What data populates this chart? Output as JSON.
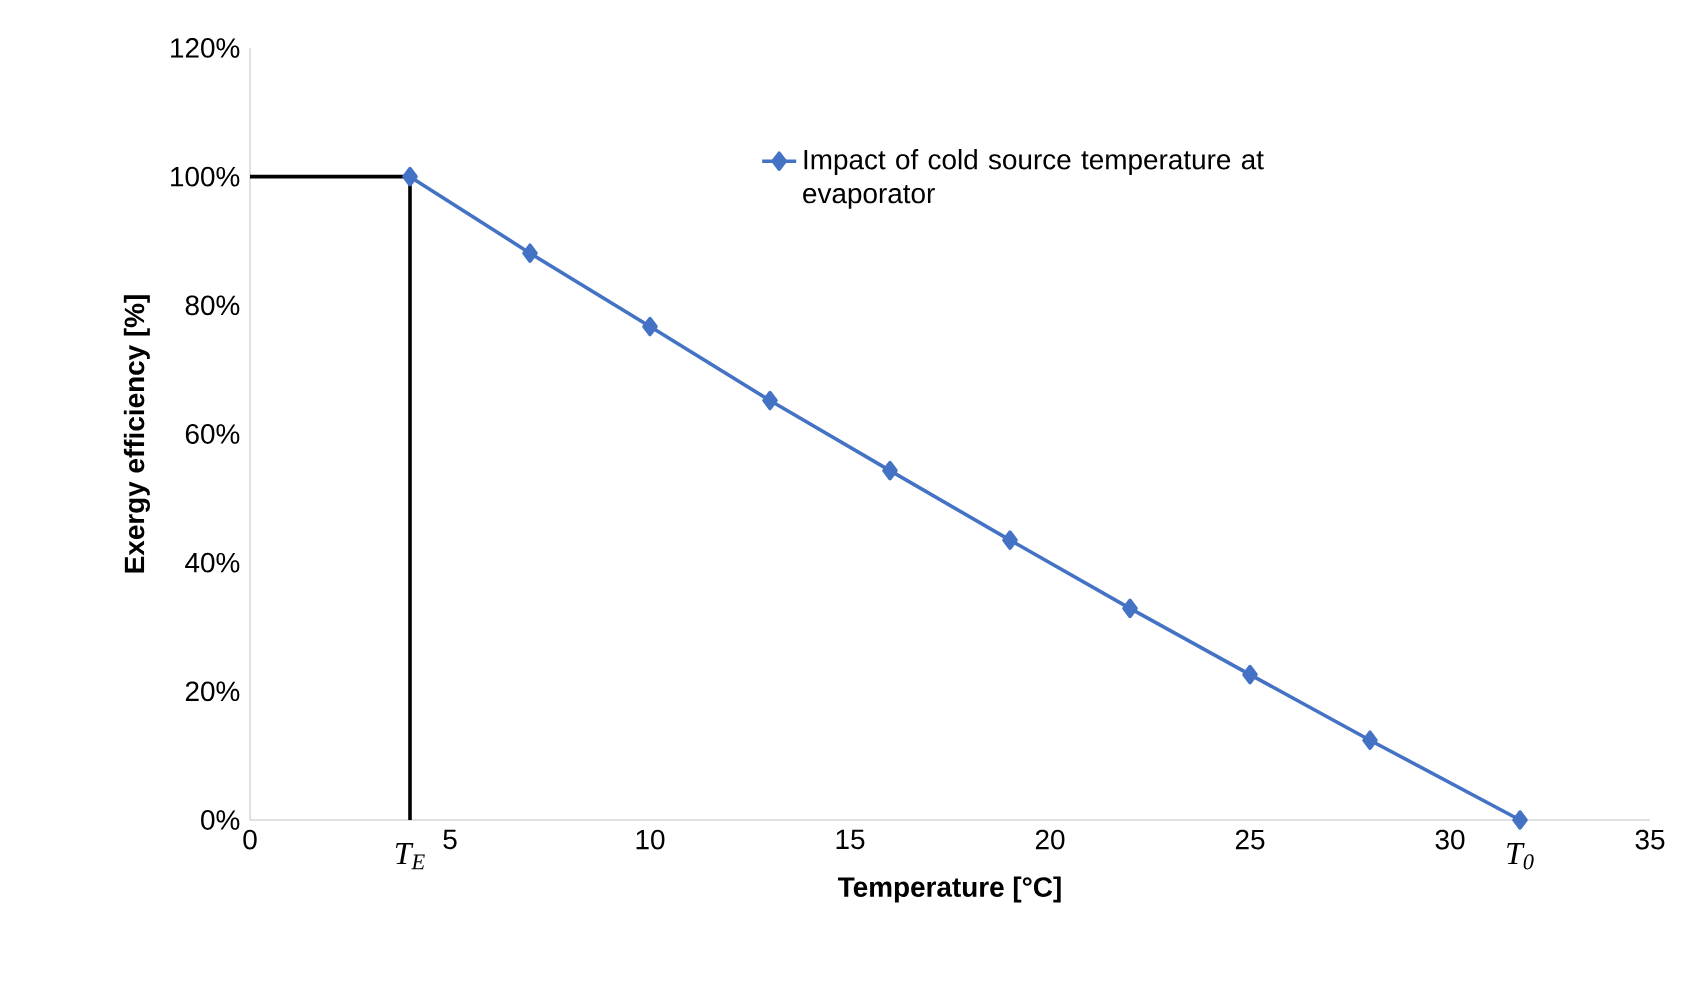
{
  "chart_data": {
    "type": "line",
    "xlabel": "Temperature [°C]",
    "ylabel": "Exergy efficiency [%]",
    "xlim": [
      0,
      35
    ],
    "ylim": [
      0,
      120
    ],
    "xticks": [
      0,
      5,
      10,
      15,
      20,
      25,
      30,
      35
    ],
    "annotations": [
      {
        "text": "T$_{E}$",
        "x": 4,
        "y": 0
      },
      {
        "text": "T$_{0}$",
        "x": 31.75,
        "y": 0
      }
    ],
    "yticks": [
      {
        "value": 0,
        "label": "0%"
      },
      {
        "value": 20,
        "label": "20%"
      },
      {
        "value": 40,
        "label": "40%"
      },
      {
        "value": 60,
        "label": "60%"
      },
      {
        "value": 80,
        "label": "80%"
      },
      {
        "value": 100,
        "label": "100%"
      },
      {
        "value": 120,
        "label": "120%"
      }
    ],
    "series": [
      {
        "name": "Impact of cold source temperature at evaporator",
        "color": "#4472c4",
        "marker": "diamond",
        "x": [
          4,
          7,
          10,
          13,
          16,
          19,
          22,
          25,
          28,
          31.75
        ],
        "values": [
          100,
          88.1,
          76.7,
          65.2,
          54.3,
          43.5,
          32.9,
          22.6,
          12.4,
          0
        ]
      },
      {
        "color": "#000000",
        "marker": "none",
        "x": [
          0,
          4,
          4
        ],
        "values": [
          100,
          100,
          0
        ]
      }
    ],
    "grid": false,
    "legend": "top right"
  }
}
